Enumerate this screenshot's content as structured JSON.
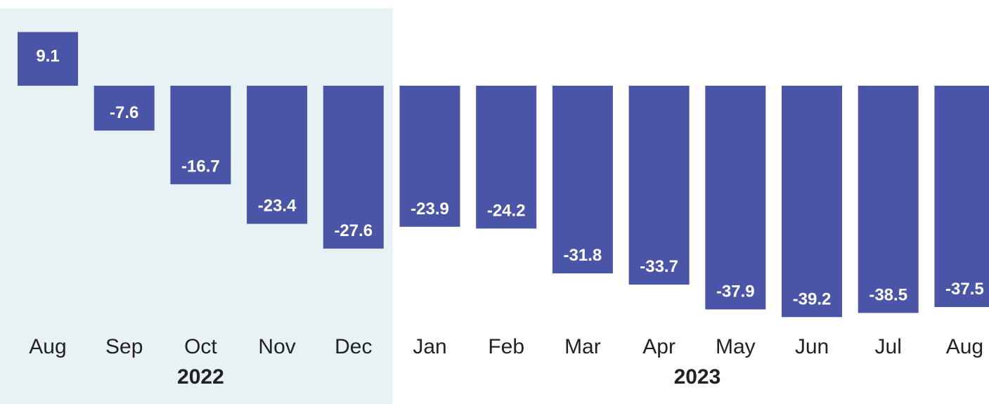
{
  "chart_data": {
    "type": "bar",
    "categories": [
      "Aug",
      "Sep",
      "Oct",
      "Nov",
      "Dec",
      "Jan",
      "Feb",
      "Mar",
      "Apr",
      "May",
      "Jun",
      "Jul",
      "Aug"
    ],
    "values": [
      9.1,
      -7.6,
      -16.7,
      -23.4,
      -27.6,
      -23.9,
      -24.2,
      -31.8,
      -33.7,
      -37.9,
      -39.2,
      -38.5,
      -37.5
    ],
    "data_labels": [
      "9.1",
      "-7.6",
      "-16.7",
      "-23.4",
      "-27.6",
      "-23.9",
      "-24.2",
      "-31.8",
      "-33.7",
      "-37.9",
      "-39.2",
      "-38.5",
      "-37.5"
    ],
    "year_groups": [
      {
        "label": "2022",
        "start": 0,
        "end": 4,
        "highlighted": true
      },
      {
        "label": "2023",
        "start": 5,
        "end": 12,
        "highlighted": false
      }
    ],
    "title": "",
    "xlabel": "",
    "ylabel": "",
    "grid": false,
    "legend": "none",
    "colors": {
      "bar": "#4a55a7",
      "highlight_band": "#e8f2f4",
      "bar_label": "#ffffff",
      "axis_text": "#222222"
    }
  }
}
